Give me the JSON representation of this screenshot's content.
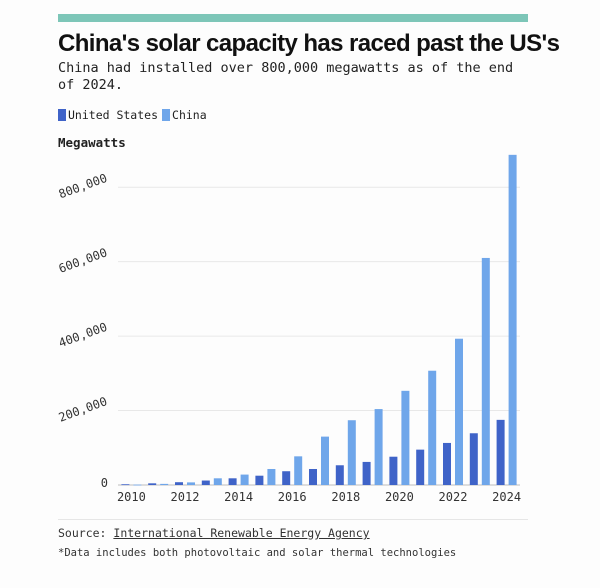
{
  "colors": {
    "accent": "#7dc6b8",
    "us": "#3f63c8",
    "china": "#6fa6ea",
    "grid": "#e8e8e8",
    "axis_text": "#333333"
  },
  "header": {
    "title": "China's solar capacity has raced past the US's",
    "subtitle": "China had installed over 800,000 megawatts as of the end of 2024."
  },
  "legend": [
    {
      "label": "United States",
      "color": "#3f63c8"
    },
    {
      "label": "China",
      "color": "#6fa6ea"
    }
  ],
  "unit_label": "Megawatts",
  "chart_data": {
    "type": "bar",
    "title": "China's solar capacity has raced past the US's",
    "ylabel": "Megawatts",
    "xlabel": "",
    "ylim": [
      0,
      900000
    ],
    "yticks": [
      0,
      200000,
      400000,
      600000,
      800000
    ],
    "ytick_labels": [
      "0",
      "200,000",
      "400,000",
      "600,000",
      "800,000"
    ],
    "categories": [
      "2010",
      "2011",
      "2012",
      "2013",
      "2014",
      "2015",
      "2016",
      "2017",
      "2018",
      "2019",
      "2020",
      "2021",
      "2022",
      "2023",
      "2024"
    ],
    "xtick_labels": [
      "2010",
      "2012",
      "2014",
      "2016",
      "2018",
      "2020",
      "2022",
      "2024"
    ],
    "series": [
      {
        "name": "United States",
        "values": [
          2000,
          4500,
          7500,
          12000,
          18000,
          25000,
          37000,
          43000,
          53000,
          62000,
          76000,
          95000,
          113000,
          139000,
          175000
        ]
      },
      {
        "name": "China",
        "values": [
          1000,
          3000,
          7000,
          18000,
          28000,
          43000,
          77000,
          130000,
          174000,
          204000,
          253000,
          307000,
          393000,
          610000,
          887000
        ]
      }
    ],
    "legend_position": "top-left",
    "grid": true
  },
  "footer": {
    "source_prefix": "Source:",
    "source_link": "International Renewable Energy Agency",
    "footnote": "*Data includes both photovoltaic and solar thermal technologies"
  }
}
